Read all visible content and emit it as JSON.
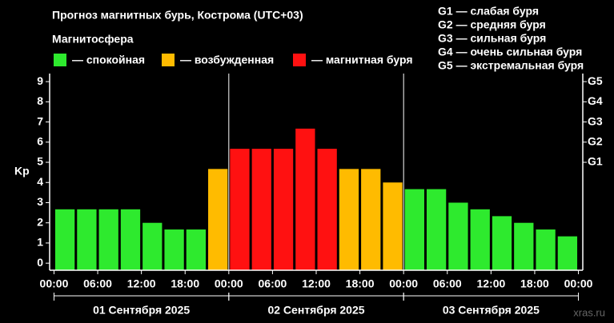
{
  "chart_data": {
    "type": "bar",
    "title": "Прогноз магнитных бурь, Кострома (UTC+03)",
    "legend_title": "Магнитосфера",
    "legend": [
      {
        "label": "— спокойная",
        "color": "#2eea2e"
      },
      {
        "label": "— возбужденная",
        "color": "#ffbb00"
      },
      {
        "label": "— магнитная буря",
        "color": "#ff1111"
      }
    ],
    "storm_levels": [
      "G1 — слабая буря",
      "G2 — средняя буря",
      "G3 — сильная буря",
      "G4 — очень сильная буря",
      "G5 — экстремальная буря"
    ],
    "ylabel": "Kp",
    "x": [
      0,
      3,
      6,
      9,
      12,
      15,
      18,
      21,
      24,
      27,
      30,
      33,
      36,
      39,
      42,
      45,
      48,
      51,
      54,
      57,
      60,
      63,
      66,
      69
    ],
    "values": [
      2.67,
      2.67,
      2.67,
      2.67,
      2.0,
      1.67,
      1.67,
      4.67,
      5.67,
      5.67,
      5.67,
      6.67,
      5.67,
      4.67,
      4.67,
      4.0,
      3.67,
      3.67,
      3.0,
      2.67,
      2.33,
      2.0,
      1.67,
      1.33
    ],
    "colors": [
      "#2eea2e",
      "#2eea2e",
      "#2eea2e",
      "#2eea2e",
      "#2eea2e",
      "#2eea2e",
      "#2eea2e",
      "#ffbb00",
      "#ff1111",
      "#ff1111",
      "#ff1111",
      "#ff1111",
      "#ff1111",
      "#ffbb00",
      "#ffbb00",
      "#ffbb00",
      "#2eea2e",
      "#2eea2e",
      "#2eea2e",
      "#2eea2e",
      "#2eea2e",
      "#2eea2e",
      "#2eea2e",
      "#2eea2e"
    ],
    "xlim": [
      -0.6,
      72.6
    ],
    "xticks": [
      {
        "value": 0,
        "label": "00:00"
      },
      {
        "value": 6,
        "label": "06:00"
      },
      {
        "value": 12,
        "label": "12:00"
      },
      {
        "value": 18,
        "label": "18:00"
      },
      {
        "value": 24,
        "label": "00:00"
      },
      {
        "value": 30,
        "label": "06:00"
      },
      {
        "value": 36,
        "label": "12:00"
      },
      {
        "value": 42,
        "label": "18:00"
      },
      {
        "value": 48,
        "label": "00:00"
      },
      {
        "value": 54,
        "label": "06:00"
      },
      {
        "value": 60,
        "label": "12:00"
      },
      {
        "value": 66,
        "label": "18:00"
      },
      {
        "value": 72,
        "label": "00:00"
      }
    ],
    "days": [
      {
        "start": 0,
        "end": 24,
        "label": "01 Сентября 2025"
      },
      {
        "start": 24,
        "end": 48,
        "label": "02 Сентября 2025"
      },
      {
        "start": 48,
        "end": 72,
        "label": "03 Сентября 2025"
      }
    ],
    "ylim": [
      -0.35,
      9.4
    ],
    "yticks": [
      0,
      1,
      2,
      3,
      4,
      5,
      6,
      7,
      8,
      9
    ],
    "y2lim": [
      -0.35,
      9.4
    ],
    "y2ticks": [
      {
        "value": 5,
        "label": "G1"
      },
      {
        "value": 6,
        "label": "G2"
      },
      {
        "value": 7,
        "label": "G3"
      },
      {
        "value": 8,
        "label": "G4"
      },
      {
        "value": 9,
        "label": "G5"
      }
    ],
    "watermark": "xras.ru"
  }
}
